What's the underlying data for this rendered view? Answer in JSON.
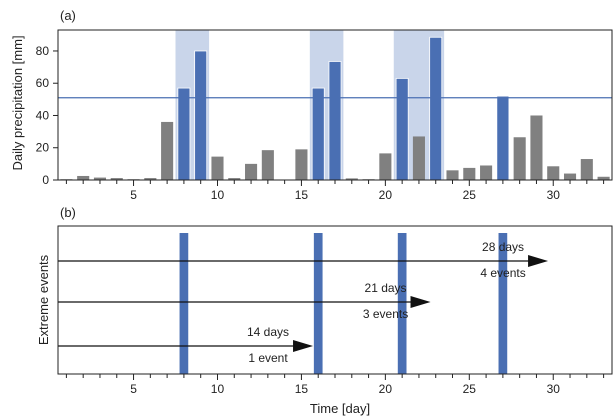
{
  "chart_data": [
    {
      "panel_label": "(a)",
      "type": "bar",
      "ylabel": "Daily precipitation [mm]",
      "xlim": [
        0.5,
        33.5
      ],
      "ylim": [
        0,
        93
      ],
      "yticks": [
        0,
        20,
        40,
        60,
        80
      ],
      "xticks_labeled": [
        5,
        10,
        15,
        20,
        25,
        30
      ],
      "threshold": 51,
      "colors": {
        "extreme": "#4a6fb3",
        "normal": "#808080",
        "shade": "#c9d5ea",
        "threshold": "#4a6fb3"
      },
      "shaded_ranges": [
        [
          7.5,
          9.5
        ],
        [
          15.5,
          17.5
        ],
        [
          20.5,
          23.5
        ]
      ],
      "days": [
        1,
        2,
        3,
        4,
        5,
        6,
        7,
        8,
        9,
        10,
        11,
        12,
        13,
        14,
        15,
        16,
        17,
        18,
        19,
        20,
        21,
        22,
        23,
        24,
        25,
        26,
        27,
        28,
        29,
        30,
        31,
        32,
        33
      ],
      "values": [
        0.5,
        2.5,
        1.5,
        1.2,
        0.5,
        1.2,
        36,
        57,
        80,
        14.5,
        1.2,
        10,
        18.5,
        0.3,
        19,
        57,
        73.5,
        1,
        0.5,
        16.5,
        63,
        27,
        88.5,
        6,
        7.5,
        9,
        52,
        26.5,
        40,
        8.5,
        4,
        13,
        2
      ],
      "extreme_days": [
        8,
        9,
        16,
        17,
        21,
        23,
        27
      ]
    },
    {
      "panel_label": "(b)",
      "type": "event_timeline",
      "ylabel": "Extreme events",
      "xlabel": "Time [day]",
      "xlim": [
        0.5,
        33.5
      ],
      "xticks_labeled": [
        5,
        10,
        15,
        20,
        25,
        30
      ],
      "colors": {
        "event": "#4a6fb3",
        "arrow": "#111111"
      },
      "event_days": [
        8,
        16,
        21,
        27
      ],
      "windows": [
        {
          "days": 14,
          "count_label": "14 days",
          "events_label": "1 event"
        },
        {
          "days": 21,
          "count_label": "21 days",
          "events_label": "3 events"
        },
        {
          "days": 28,
          "count_label": "28 days",
          "events_label": "4 events"
        }
      ]
    }
  ]
}
